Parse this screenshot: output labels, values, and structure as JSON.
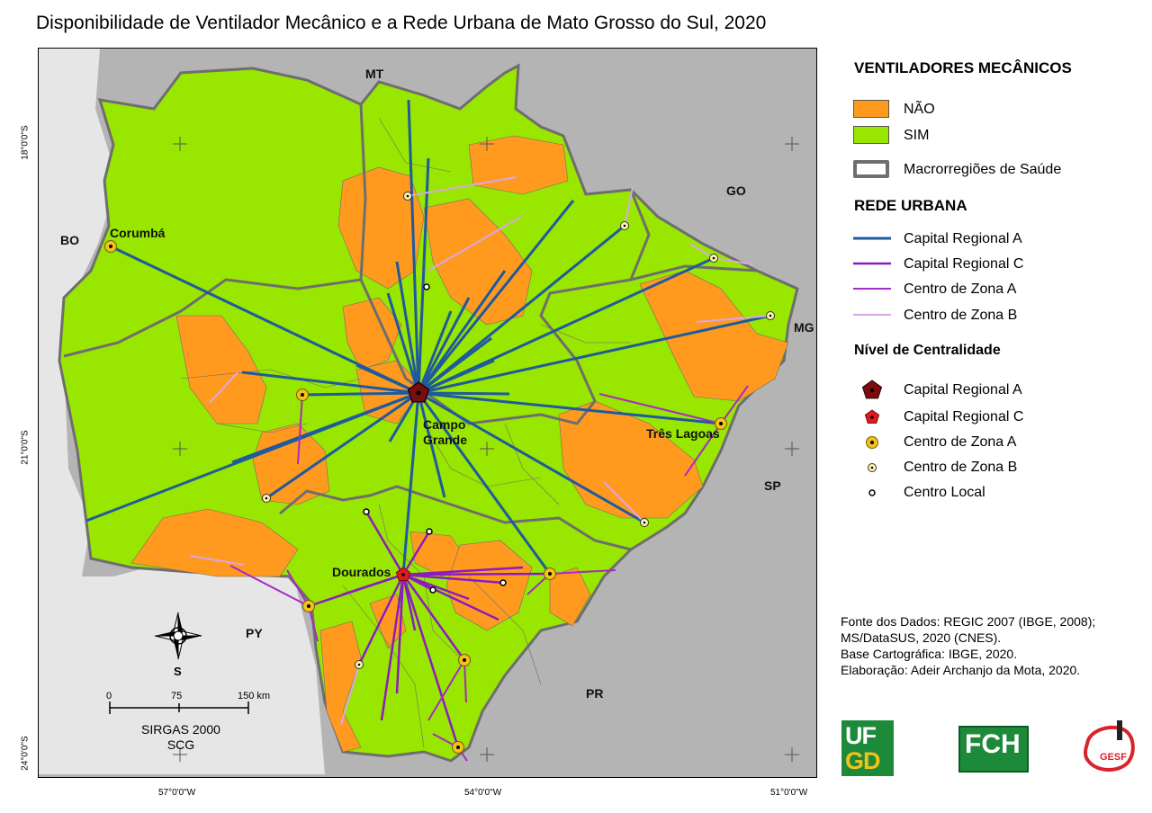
{
  "title": "Disponibilidade de Ventilador Mecânico e a Rede Urbana de Mato Grosso do Sul, 2020",
  "colors": {
    "nao": "#ff9a1f",
    "sim": "#99e600",
    "capital_regional_a": "#1f5a9e",
    "capital_regional_c": "#8a1cc0",
    "centro_zona_a": "#a52bc7",
    "centro_zona_b": "#d9a6e6",
    "neighbor": "#b4b4b4",
    "border_gray": "#6e6e6e",
    "cr_a_marker": "#7a0d0d",
    "cr_c_marker": "#e0191f",
    "cza_marker": "#f2c318"
  },
  "map": {
    "neighbors": {
      "mt": "MT",
      "go": "GO",
      "mg": "MG",
      "sp": "SP",
      "pr": "PR",
      "py": "PY",
      "bo": "BO"
    },
    "cities": {
      "corumba": "Corumbá",
      "campo_grande_1": "Campo",
      "campo_grande_2": "Grande",
      "tres_lagoas": "Três Lagoas",
      "dourados": "Dourados"
    },
    "coords_x": [
      "57°0'0\"W",
      "54°0'0\"W",
      "51°0'0\"W"
    ],
    "coords_y": [
      "18°0'0\"S",
      "21°0'0\"S",
      "24°0'0\"S"
    ],
    "north_label": "S",
    "scale": {
      "ticks": [
        "0",
        "75",
        "150 km"
      ],
      "datum_1": "SIRGAS 2000",
      "datum_2": "SCG"
    }
  },
  "legend": {
    "heading_ventiladores": "VENTILADORES MECÂNICOS",
    "nao": "NÃO",
    "sim": "SIM",
    "macro": "Macrorregiões de Saúde",
    "heading_rede": "REDE URBANA",
    "rede": [
      "Capital Regional A",
      "Capital Regional C",
      "Centro de Zona A",
      "Centro de Zona B"
    ],
    "heading_nivel": "Nível de Centralidade",
    "nivel": [
      "Capital Regional A",
      "Capital Regional C",
      "Centro de Zona A",
      "Centro de Zona B",
      "Centro Local"
    ]
  },
  "source": [
    "Fonte dos Dados: REGIC 2007 (IBGE, 2008);",
    "MS/DataSUS, 2020 (CNES).",
    "Base Cartográfica: IBGE, 2020.",
    "Elaboração: Adeir Archanjo da Mota, 2020."
  ],
  "logos": {
    "ufgd_1": "UF",
    "ufgd_2": "GD",
    "fch": "FCH",
    "gesf": "GESF"
  }
}
